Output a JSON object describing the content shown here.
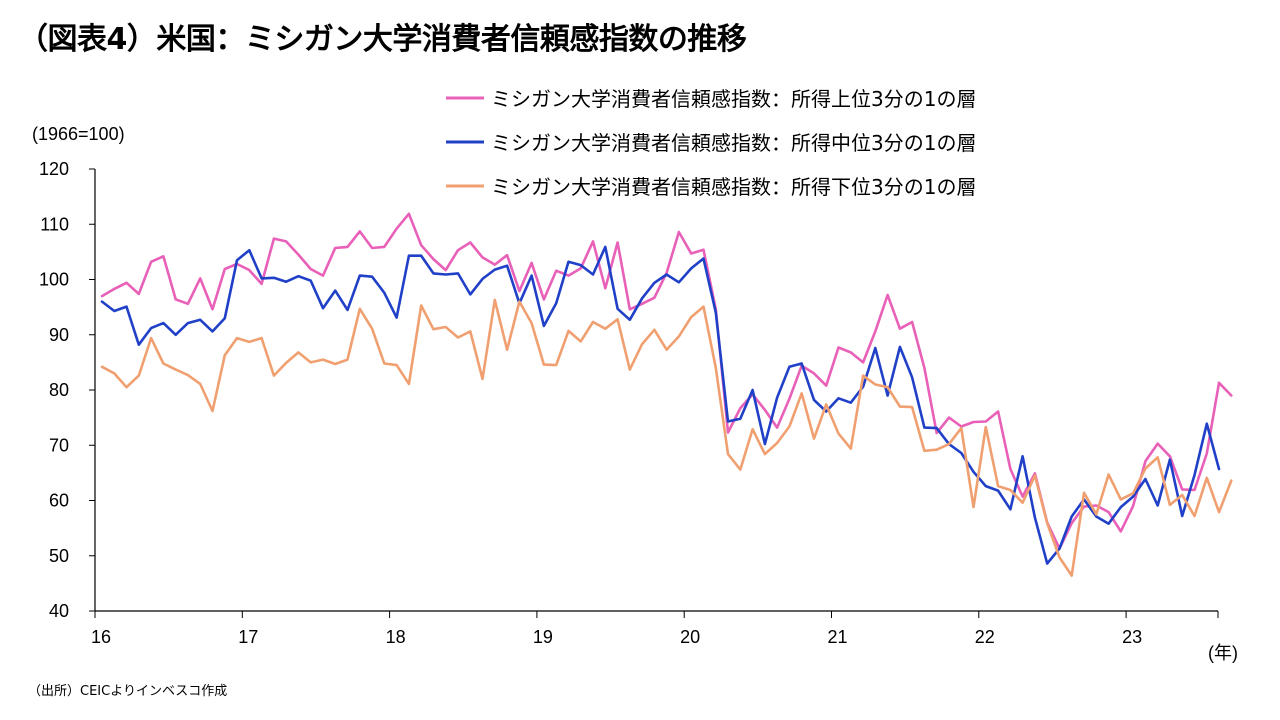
{
  "title": "（図表4）米国：ミシガン大学消費者信頼感指数の推移",
  "source": "（出所）CEICよりインベスコ作成",
  "chart_data": {
    "type": "line",
    "unit_label": "(1966=100)",
    "x_unit_label": "(年)",
    "x_ticks": [
      "16",
      "17",
      "18",
      "19",
      "20",
      "21",
      "22",
      "23"
    ],
    "y_ticks": [
      "40",
      "50",
      "60",
      "70",
      "80",
      "90",
      "100",
      "110",
      "120"
    ],
    "ylim": [
      40,
      120
    ],
    "x_start": "2016-01",
    "grid": false,
    "legend_position": "top-right",
    "series": [
      {
        "name": "ミシガン大学消費者信頼感指数：所得上位3分の1の層",
        "color": "#E860B8",
        "values": [
          97.0,
          98.3,
          99.4,
          97.4,
          103.2,
          104.2,
          96.4,
          95.6,
          100.2,
          94.6,
          101.9,
          102.8,
          101.7,
          99.2,
          107.4,
          106.9,
          104.5,
          101.9,
          100.7,
          105.7,
          105.9,
          108.7,
          105.7,
          105.9,
          109.2,
          111.9,
          106.2,
          103.7,
          101.7,
          105.3,
          106.7,
          104.0,
          102.7,
          104.4,
          97.9,
          103.0,
          96.4,
          101.6,
          100.7,
          102.0,
          106.9,
          98.4,
          106.7,
          94.6,
          95.6,
          96.7,
          101.2,
          108.6,
          104.7,
          105.4,
          94.6,
          72.3,
          76.7,
          79.2,
          76.4,
          73.2,
          78.4,
          84.4,
          83.0,
          80.8,
          87.7,
          86.8,
          85.0,
          90.6,
          97.2,
          91.1,
          92.3,
          84.0,
          72.2,
          75.0,
          73.4,
          74.2,
          74.3,
          76.1,
          65.7,
          60.7,
          64.9,
          56.0,
          51.3,
          55.9,
          58.9,
          59.1,
          57.9,
          54.4,
          59.0,
          67.1,
          70.3,
          68.0,
          62.0,
          61.9,
          68.5,
          81.3,
          79.0
        ]
      },
      {
        "name": "ミシガン大学消費者信頼感指数：所得中位3分の1の層",
        "color": "#2040C8",
        "values": [
          96.0,
          94.3,
          95.1,
          88.2,
          91.2,
          92.1,
          90.0,
          92.1,
          92.7,
          90.6,
          93.0,
          103.5,
          105.3,
          100.2,
          100.3,
          99.6,
          100.6,
          99.8,
          94.8,
          98.0,
          94.5,
          100.7,
          100.5,
          97.6,
          93.1,
          104.3,
          104.3,
          101.1,
          100.9,
          101.1,
          97.3,
          100.1,
          101.8,
          102.5,
          95.7,
          100.7,
          91.6,
          95.7,
          103.2,
          102.6,
          100.9,
          105.9,
          94.7,
          92.7,
          96.6,
          99.4,
          100.9,
          99.5,
          102.0,
          103.8,
          94.0,
          74.3,
          74.8,
          80.0,
          70.2,
          78.6,
          84.2,
          84.8,
          78.2,
          76.1,
          78.5,
          77.7,
          80.6,
          87.6,
          79.0,
          87.8,
          82.3,
          73.2,
          73.1,
          70.2,
          68.6,
          65.2,
          62.6,
          61.8,
          58.4,
          68.0,
          56.9,
          48.6,
          51.3,
          57.1,
          60.2,
          57.1,
          55.8,
          58.8,
          60.7,
          63.9,
          59.1,
          67.4,
          57.2,
          64.6,
          73.9,
          65.7
        ]
      },
      {
        "name": "ミシガン大学消費者信頼感指数：所得下位3分の1の層",
        "color": "#F0A070",
        "values": [
          84.2,
          83.0,
          80.5,
          82.6,
          89.4,
          84.8,
          83.7,
          82.7,
          81.1,
          76.2,
          86.3,
          89.4,
          88.7,
          89.4,
          82.6,
          84.9,
          86.8,
          85.0,
          85.5,
          84.7,
          85.5,
          94.7,
          91.1,
          84.8,
          84.5,
          81.1,
          95.3,
          91.0,
          91.4,
          89.5,
          90.6,
          82.0,
          96.3,
          87.3,
          96.0,
          92.1,
          84.6,
          84.5,
          90.7,
          88.8,
          92.3,
          91.1,
          92.8,
          83.7,
          88.3,
          90.9,
          87.3,
          89.7,
          93.2,
          95.1,
          84.0,
          68.4,
          65.6,
          72.9,
          68.4,
          70.4,
          73.4,
          79.4,
          71.2,
          77.4,
          72.1,
          69.4,
          82.6,
          81.0,
          80.5,
          77.0,
          76.9,
          69.0,
          69.2,
          70.2,
          73.1,
          58.8,
          73.3,
          62.6,
          61.9,
          59.6,
          64.5,
          55.9,
          49.7,
          46.4,
          61.4,
          57.5,
          64.7,
          60.2,
          61.3,
          65.8,
          67.8,
          59.2,
          61.0,
          57.2,
          64.1,
          57.9,
          63.6
        ]
      }
    ]
  }
}
